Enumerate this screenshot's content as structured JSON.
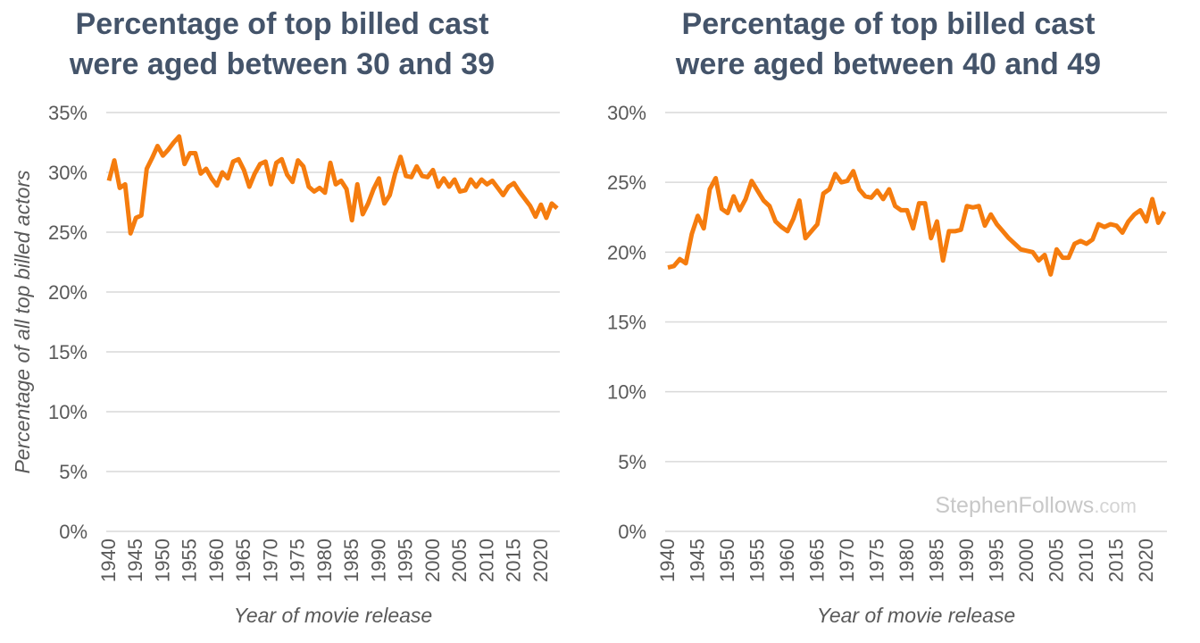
{
  "chart_data": [
    {
      "type": "line",
      "title": [
        "Percentage of top billed cast",
        "were aged between 30 and 39"
      ],
      "xlabel": "Year of movie release",
      "ylabel": "Percentage of all top billed actors",
      "x": [
        1940,
        1941,
        1942,
        1943,
        1944,
        1945,
        1946,
        1947,
        1948,
        1949,
        1950,
        1951,
        1952,
        1953,
        1954,
        1955,
        1956,
        1957,
        1958,
        1959,
        1960,
        1961,
        1962,
        1963,
        1964,
        1965,
        1966,
        1967,
        1968,
        1969,
        1970,
        1971,
        1972,
        1973,
        1974,
        1975,
        1976,
        1977,
        1978,
        1979,
        1980,
        1981,
        1982,
        1983,
        1984,
        1985,
        1986,
        1987,
        1988,
        1989,
        1990,
        1991,
        1992,
        1993,
        1994,
        1995,
        1996,
        1997,
        1998,
        1999,
        2000,
        2001,
        2002,
        2003,
        2004,
        2005,
        2006,
        2007,
        2008,
        2009,
        2010,
        2011,
        2012,
        2013,
        2014,
        2015,
        2016,
        2017,
        2018,
        2019,
        2020,
        2021,
        2022,
        2023
      ],
      "series": [
        {
          "color": "#f57c0e",
          "values": [
            29.3,
            31.0,
            28.7,
            29.0,
            24.9,
            26.2,
            26.4,
            30.3,
            31.2,
            32.2,
            31.4,
            31.9,
            32.5,
            33.0,
            30.7,
            31.6,
            31.6,
            29.9,
            30.3,
            29.5,
            28.9,
            30.0,
            29.5,
            30.9,
            31.1,
            30.2,
            28.8,
            29.9,
            30.7,
            30.9,
            29.0,
            30.8,
            31.1,
            29.8,
            29.2,
            31.0,
            30.5,
            28.8,
            28.4,
            28.7,
            28.3,
            30.8,
            29.0,
            29.3,
            28.6,
            26.0,
            29.0,
            26.5,
            27.4,
            28.6,
            29.5,
            27.4,
            28.1,
            29.9,
            31.3,
            29.7,
            29.6,
            30.5,
            29.7,
            29.6,
            30.2,
            28.8,
            29.5,
            28.8,
            29.4,
            28.4,
            28.5,
            29.4,
            28.8,
            29.4,
            29.0,
            29.3,
            28.7,
            28.1,
            28.8,
            29.1,
            28.4,
            27.8,
            27.2,
            26.3,
            27.3,
            26.2,
            27.4,
            27.0
          ]
        }
      ],
      "xlim": [
        1940,
        2023
      ],
      "xticks": [
        1940,
        1945,
        1950,
        1955,
        1960,
        1965,
        1970,
        1975,
        1980,
        1985,
        1990,
        1995,
        2000,
        2005,
        2010,
        2015,
        2020
      ],
      "ylim": [
        0,
        35
      ],
      "yticks": [
        {
          "value": 0,
          "label": "0%"
        },
        {
          "value": 5,
          "label": "5%"
        },
        {
          "value": 10,
          "label": "10%"
        },
        {
          "value": 15,
          "label": "15%"
        },
        {
          "value": 20,
          "label": "20%"
        },
        {
          "value": 25,
          "label": "25%"
        },
        {
          "value": 30,
          "label": "30%"
        },
        {
          "value": 35,
          "label": "35%"
        }
      ],
      "grid": true
    },
    {
      "type": "line",
      "title": [
        "Percentage of top billed cast",
        "were aged between 40 and 49"
      ],
      "xlabel": "Year of movie release",
      "watermark": {
        "name": "StephenFollows",
        "suffix": ".com"
      },
      "x": [
        1940,
        1941,
        1942,
        1943,
        1944,
        1945,
        1946,
        1947,
        1948,
        1949,
        1950,
        1951,
        1952,
        1953,
        1954,
        1955,
        1956,
        1957,
        1958,
        1959,
        1960,
        1961,
        1962,
        1963,
        1964,
        1965,
        1966,
        1967,
        1968,
        1969,
        1970,
        1971,
        1972,
        1973,
        1974,
        1975,
        1976,
        1977,
        1978,
        1979,
        1980,
        1981,
        1982,
        1983,
        1984,
        1985,
        1986,
        1987,
        1988,
        1989,
        1990,
        1991,
        1992,
        1993,
        1994,
        1995,
        1996,
        1997,
        1998,
        1999,
        2000,
        2001,
        2002,
        2003,
        2004,
        2005,
        2006,
        2007,
        2008,
        2009,
        2010,
        2011,
        2012,
        2013,
        2014,
        2015,
        2016,
        2017,
        2018,
        2019,
        2020,
        2021,
        2022,
        2023
      ],
      "series": [
        {
          "color": "#f57c0e",
          "values": [
            18.9,
            19.0,
            19.5,
            19.2,
            21.3,
            22.6,
            21.7,
            24.5,
            25.3,
            23.1,
            22.8,
            24.0,
            23.0,
            23.8,
            25.1,
            24.4,
            23.7,
            23.3,
            22.2,
            21.8,
            21.5,
            22.4,
            23.7,
            21.0,
            21.5,
            22.0,
            24.2,
            24.5,
            25.6,
            25.0,
            25.1,
            25.8,
            24.5,
            24.0,
            23.9,
            24.4,
            23.8,
            24.5,
            23.3,
            23.0,
            23.0,
            21.7,
            23.5,
            23.5,
            21.0,
            22.2,
            19.4,
            21.5,
            21.5,
            21.6,
            23.3,
            23.2,
            23.3,
            21.9,
            22.7,
            22.0,
            21.5,
            21.0,
            20.6,
            20.2,
            20.1,
            20.0,
            19.4,
            19.8,
            18.4,
            20.2,
            19.6,
            19.6,
            20.6,
            20.8,
            20.6,
            20.9,
            22.0,
            21.8,
            22.0,
            21.9,
            21.4,
            22.2,
            22.7,
            23.0,
            22.2,
            23.8,
            22.1,
            22.9
          ]
        }
      ],
      "xlim": [
        1940,
        2023
      ],
      "xticks": [
        1940,
        1945,
        1950,
        1955,
        1960,
        1965,
        1970,
        1975,
        1980,
        1985,
        1990,
        1995,
        2000,
        2005,
        2010,
        2015,
        2020
      ],
      "ylim": [
        0,
        30
      ],
      "yticks": [
        {
          "value": 0,
          "label": "0%"
        },
        {
          "value": 5,
          "label": "5%"
        },
        {
          "value": 10,
          "label": "10%"
        },
        {
          "value": 15,
          "label": "15%"
        },
        {
          "value": 20,
          "label": "20%"
        },
        {
          "value": 25,
          "label": "25%"
        },
        {
          "value": 30,
          "label": "30%"
        }
      ],
      "grid": true
    }
  ]
}
